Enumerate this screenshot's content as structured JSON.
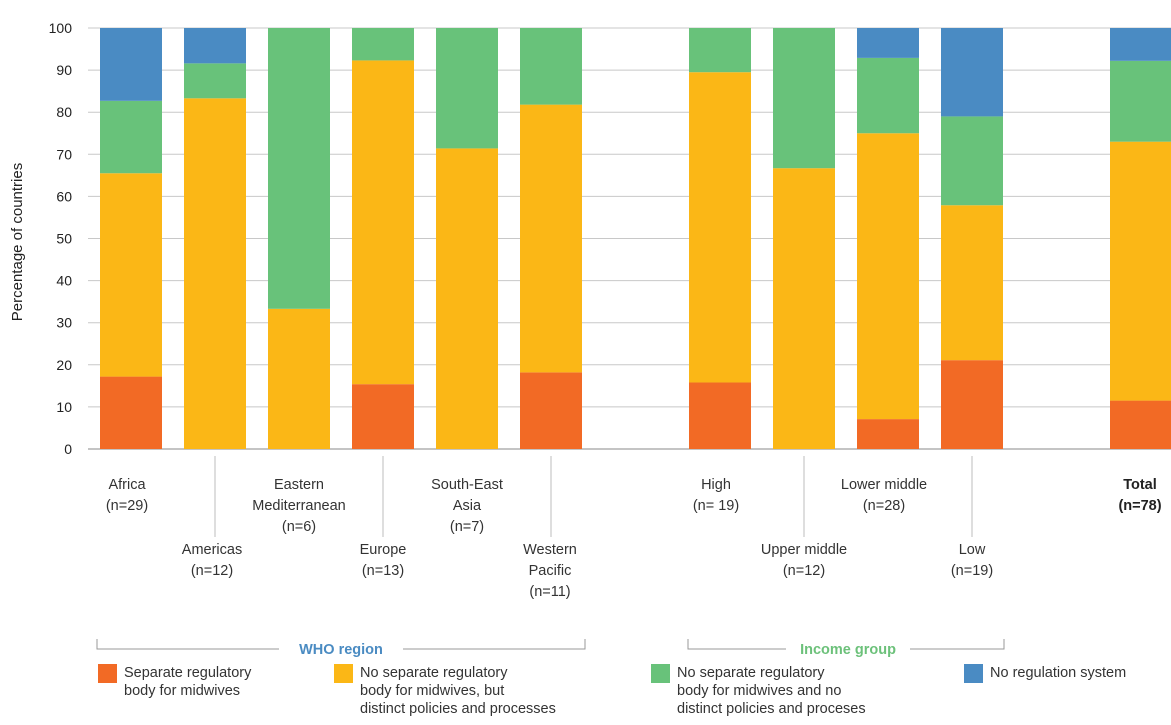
{
  "chart_data": {
    "type": "bar",
    "stacked": true,
    "ylabel": "Percentage of countries",
    "ylim": [
      0,
      100
    ],
    "yticks": [
      0,
      10,
      20,
      30,
      40,
      50,
      60,
      70,
      80,
      90,
      100
    ],
    "grid": true,
    "categories": [
      {
        "lines": [
          "Africa",
          "(n=29)"
        ]
      },
      {
        "lines": [
          "Americas",
          "(n=12)"
        ]
      },
      {
        "lines": [
          "Eastern",
          "Mediterranean",
          "(n=6)"
        ]
      },
      {
        "lines": [
          "Europe",
          "(n=13)"
        ]
      },
      {
        "lines": [
          "South-East",
          "Asia",
          "(n=7)"
        ]
      },
      {
        "lines": [
          "Western",
          "Pacific",
          "(n=11)"
        ]
      },
      {
        "lines": [
          "High",
          "(n= 19)"
        ]
      },
      {
        "lines": [
          "Upper middle",
          "(n=12)"
        ]
      },
      {
        "lines": [
          "Lower middle",
          "(n=28)"
        ]
      },
      {
        "lines": [
          "Low",
          "(n=19)"
        ]
      },
      {
        "lines": [
          "Total",
          "(n=78)"
        ],
        "bold": true
      }
    ],
    "series": [
      {
        "name": "Separate regulatory body for midwives",
        "color": "#f26a25",
        "values": [
          17.2,
          0,
          0,
          15.4,
          0,
          18.2,
          15.8,
          0,
          7.1,
          21.1,
          11.5
        ]
      },
      {
        "name": "No separate regulatory body for midwives, but distinct policies and processes",
        "color": "#fbb716",
        "values": [
          48.3,
          83.3,
          33.3,
          76.9,
          71.4,
          63.6,
          73.7,
          66.7,
          67.9,
          36.8,
          61.5
        ]
      },
      {
        "name": "No separate regulatory body for midwives and no distinct policies and proceses",
        "color": "#68c27a",
        "values": [
          17.2,
          8.3,
          66.7,
          7.7,
          28.6,
          18.2,
          10.5,
          33.3,
          17.9,
          21.1,
          19.2
        ]
      },
      {
        "name": "No regulation system",
        "color": "#4a8bc3",
        "values": [
          17.3,
          8.4,
          0,
          0,
          0,
          0,
          0,
          0,
          7.1,
          21.0,
          7.8
        ]
      }
    ],
    "groups": [
      {
        "label": "WHO region",
        "color": "#4a8bc2"
      },
      {
        "label": "Income group",
        "color": "#6cc17a"
      }
    ]
  },
  "legend": [
    {
      "lines": [
        "Separate regulatory",
        "body for midwives"
      ],
      "color": "#f26a25"
    },
    {
      "lines": [
        "No separate regulatory",
        "body for midwives, but",
        "distinct policies and processes"
      ],
      "color": "#fbb716"
    },
    {
      "lines": [
        "No separate regulatory",
        "body for midwives and no",
        "distinct policies and proceses"
      ],
      "color": "#68c27a"
    },
    {
      "lines": [
        "No regulation system"
      ],
      "color": "#4a8bc3"
    }
  ]
}
